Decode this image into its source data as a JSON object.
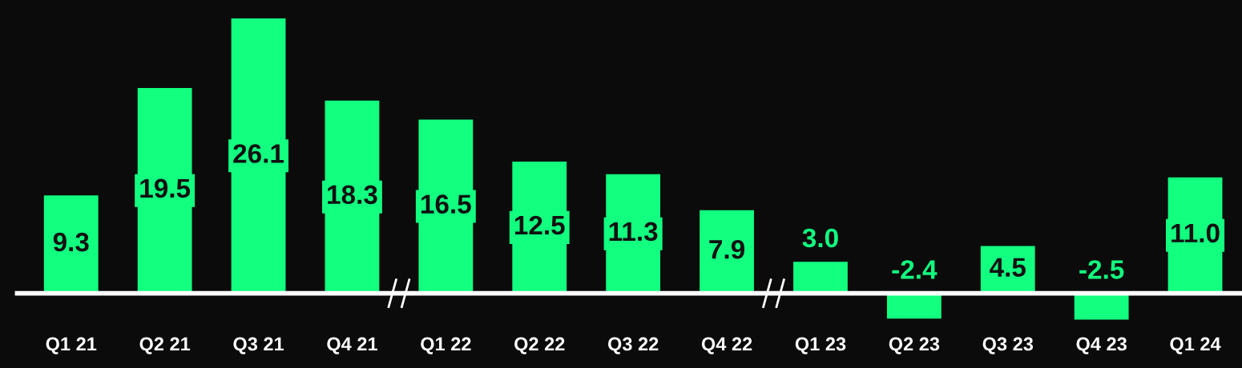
{
  "chart_data": {
    "type": "bar",
    "categories": [
      "Q1 21",
      "Q2 21",
      "Q3 21",
      "Q4 21",
      "Q1 22",
      "Q2 22",
      "Q3 22",
      "Q4 22",
      "Q1 23",
      "Q2 23",
      "Q3 23",
      "Q4 23",
      "Q1 24"
    ],
    "values": [
      9.3,
      19.5,
      26.1,
      18.3,
      16.5,
      12.5,
      11.3,
      7.9,
      3.0,
      -2.4,
      4.5,
      -2.5,
      11.0
    ],
    "color": "#12ff80",
    "value_labels": [
      "9.3",
      "19.5",
      "26.1",
      "18.3",
      "16.5",
      "12.5",
      "11.3",
      "7.9",
      "3.0",
      "-2.4",
      "4.5",
      "-2.5",
      "11.0"
    ],
    "grid": false
  }
}
